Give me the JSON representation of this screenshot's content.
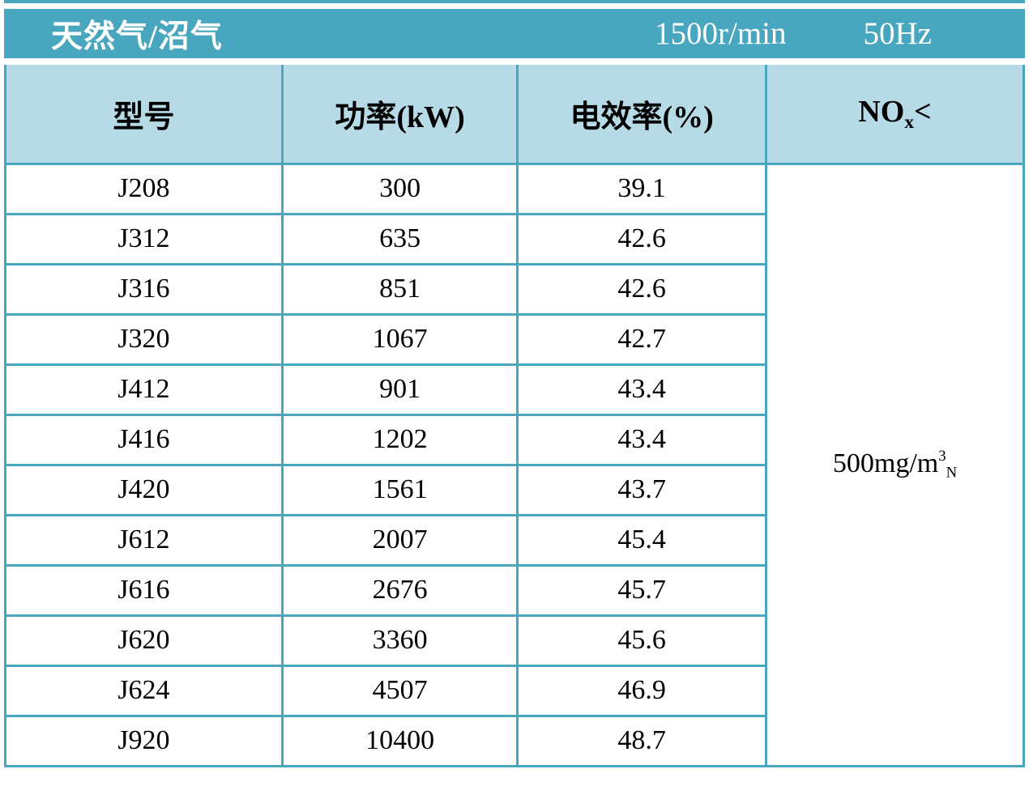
{
  "header_band": {
    "fuel_label": "天然气/沼气",
    "speed": "1500r/min",
    "frequency": "50Hz"
  },
  "columns": {
    "model": "型号",
    "power": "功率(kW)",
    "efficiency": "电效率(%)",
    "nox_prefix": "NO",
    "nox_sub": "x",
    "nox_symbol": "<"
  },
  "rows": [
    {
      "model": "J208",
      "power": "300",
      "efficiency": "39.1"
    },
    {
      "model": "J312",
      "power": "635",
      "efficiency": "42.6"
    },
    {
      "model": "J316",
      "power": "851",
      "efficiency": "42.6"
    },
    {
      "model": "J320",
      "power": "1067",
      "efficiency": "42.7"
    },
    {
      "model": "J412",
      "power": "901",
      "efficiency": "43.4"
    },
    {
      "model": "J416",
      "power": "1202",
      "efficiency": "43.4"
    },
    {
      "model": "J420",
      "power": "1561",
      "efficiency": "43.7"
    },
    {
      "model": "J612",
      "power": "2007",
      "efficiency": "45.4"
    },
    {
      "model": "J616",
      "power": "2676",
      "efficiency": "45.7"
    },
    {
      "model": "J620",
      "power": "3360",
      "efficiency": "45.6"
    },
    {
      "model": "J624",
      "power": "4507",
      "efficiency": "46.9"
    },
    {
      "model": "J920",
      "power": "10400",
      "efficiency": "48.7"
    }
  ],
  "nox_limit": {
    "value": "500mg/m",
    "sup": "3",
    "sub": "N"
  },
  "colors": {
    "band_teal": "#49a6bf",
    "header_bg": "#b7dbe6",
    "border_teal": "#49a6bf",
    "band_text": "#ffffff",
    "cell_text": "#000000"
  },
  "chart_data": {
    "type": "table",
    "title": "天然气/沼气 1500r/min 50Hz",
    "categories": [
      "J208",
      "J312",
      "J316",
      "J320",
      "J412",
      "J416",
      "J420",
      "J612",
      "J616",
      "J620",
      "J624",
      "J920"
    ],
    "series": [
      {
        "name": "功率(kW)",
        "values": [
          300,
          635,
          851,
          1067,
          901,
          1202,
          1561,
          2007,
          2676,
          3360,
          4507,
          10400
        ]
      },
      {
        "name": "电效率(%)",
        "values": [
          39.1,
          42.6,
          42.6,
          42.7,
          43.4,
          43.4,
          43.7,
          45.4,
          45.7,
          45.6,
          46.9,
          48.7
        ]
      }
    ],
    "nox_limit": "NOx < 500mg/m3N"
  }
}
